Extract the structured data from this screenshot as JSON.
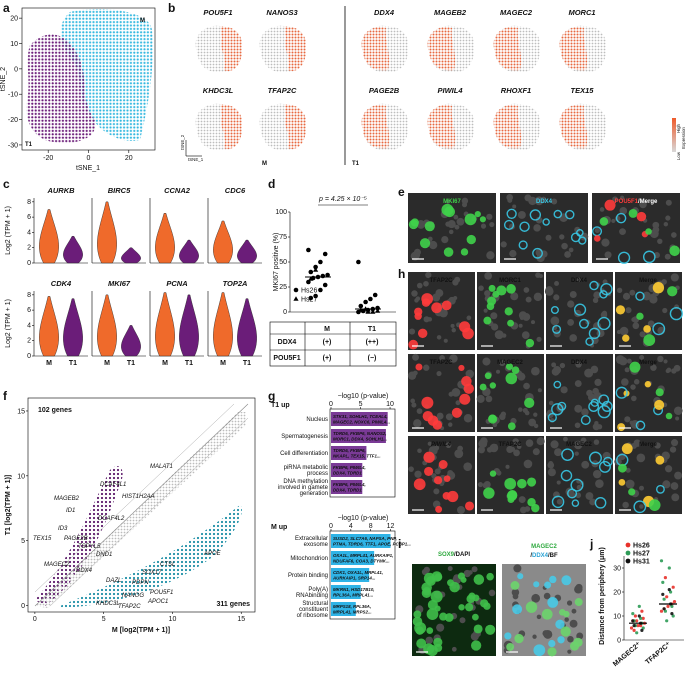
{
  "a": {
    "label": "a",
    "clusters": [
      "M",
      "T1"
    ],
    "xlabel": "tSNE_1",
    "ylabel": "tSNE_2",
    "xlim": [
      -33,
      33
    ],
    "xticks": [
      -20,
      0,
      20
    ],
    "ylim": [
      -32,
      24
    ],
    "yticks": [
      -30,
      -20,
      -10,
      0,
      10,
      20
    ]
  },
  "b": {
    "label": "b",
    "m_genes": [
      "POU5F1",
      "NANOS3",
      "KHDC3L",
      "TFAP2C"
    ],
    "t1_genes": [
      "DDX4",
      "MAGEB2",
      "MAGEC2",
      "MORC1",
      "PAGE2B",
      "PIWIL4",
      "RHOXF1",
      "TEX15"
    ],
    "groups": [
      "M",
      "T1"
    ],
    "axis_y": "tSNE_2",
    "axis_x": "tSNE_1",
    "legend": {
      "high": "High",
      "low": "Low",
      "title": "Expression"
    }
  },
  "c": {
    "label": "c",
    "genes": [
      "AURKB",
      "BIRC5",
      "CCNA2",
      "CDC6",
      "CDK4",
      "MKI67",
      "PCNA",
      "TOP2A"
    ],
    "ylabel": "Log2 (TPM + 1)",
    "ylim": [
      0,
      8.5
    ],
    "yticks": [
      0,
      2,
      4,
      6,
      8
    ],
    "series": [
      {
        "name": "M",
        "color": "#ef6a2b",
        "values": [
          7,
          8,
          6.5,
          5.5,
          7.8,
          8,
          8.3,
          8.3
        ]
      },
      {
        "name": "T1",
        "color": "#6b1d79",
        "values": [
          3.5,
          2,
          3,
          3,
          7.5,
          4,
          8,
          7.5
        ]
      }
    ]
  },
  "d": {
    "label": "d",
    "p_text": "p = 4.25 × 10⁻⁵",
    "ylabel": "MKI67 positive (%)",
    "ylim": [
      0,
      100
    ],
    "yticks": [
      0,
      25,
      50,
      75,
      100
    ],
    "series": [
      {
        "name": "Hs26",
        "marker": "circle",
        "values": [
          [
            62,
            58,
            50,
            45,
            40,
            37,
            36,
            35,
            34,
            30,
            27,
            22,
            16,
            14
          ],
          [
            50,
            17,
            13,
            10,
            6,
            4,
            3,
            2,
            1,
            0
          ]
        ]
      },
      {
        "name": "Hs27",
        "marker": "triangle",
        "values": [
          [
            42,
            33
          ],
          [
            3,
            2,
            1,
            0,
            0
          ]
        ]
      }
    ],
    "medians": [
      35,
      3
    ],
    "table": {
      "header": [
        "M",
        "T1"
      ],
      "rows": [
        [
          "DDX4",
          "(+)",
          "(++)"
        ],
        [
          "POU5F1",
          "(+)",
          "(−)"
        ]
      ]
    }
  },
  "e": {
    "label": "e",
    "panels": [
      [
        {
          "text": "MKI67",
          "color": "#3fd14a"
        }
      ],
      [
        {
          "text": "DDX4",
          "color": "#37c8e6"
        }
      ],
      [
        {
          "text": "POU5F1",
          "color": "#ff3b3b"
        },
        {
          "text": "/Merge",
          "color": "#ffffff"
        }
      ]
    ]
  },
  "f": {
    "label": "f",
    "count_up": "102 genes",
    "count_down": "311 genes",
    "xlabel": "M [log2(TPM + 1)]",
    "ylabel": "T1 [log2(TPM + 1)]",
    "xlim": [
      -0.5,
      16
    ],
    "ylim": [
      -0.5,
      16
    ],
    "xticks": [
      0,
      5,
      10,
      15
    ],
    "yticks": [
      0,
      5,
      10,
      15
    ],
    "genes_up": [
      "MALAT1",
      "DCAF4L1",
      "HIST1H2AA",
      "MAGEB2",
      "ID1",
      "DCAF4L2",
      "ID3",
      "PAGE2B",
      "TSPYL5",
      "TEX15",
      "MAGEC2",
      "DND1",
      "DDX4"
    ],
    "genes_down": [
      "APOE",
      "DAZL",
      "CTSL",
      "SOX17",
      "PDPN",
      "POU5F1",
      "APOC1",
      "NANOG",
      "KHDC3L",
      "TFAP2C"
    ]
  },
  "g": {
    "label": "g",
    "panels": [
      {
        "title": "T1 up",
        "axis_title": "−log10 (p-value)",
        "color": "#7a3a96",
        "xlim": [
          0,
          10.5
        ],
        "xticks": [
          0,
          5,
          10
        ],
        "categories": [
          [
            "Nucleus"
          ],
          [
            "Spermatogenesis"
          ],
          [
            "Cell differentiation"
          ],
          [
            "piRNA metabolic",
            "process"
          ],
          [
            "DNA methylation",
            "involved in gamete",
            "generation"
          ]
        ],
        "values": [
          9.6,
          9.3,
          6,
          5.3,
          5.3
        ],
        "genes": [
          [
            "STK31, SOHLH1, TCEAL4,",
            "MAGEC2, NOXC6, PIWIL4..."
          ],
          [
            "TDRD6, FKBP6, NANOS2,",
            "MORC1, DDX4, SOHLH1..."
          ],
          [
            "TDRD6, FKBP6,",
            "NKAPL, TEX15, TTF1..."
          ],
          [
            "FKBP6, PIWIL4,",
            "DDX4, TDRD1"
          ],
          [
            "FKBP6, PIWIL4,",
            "DDX4, TDRD1"
          ]
        ]
      },
      {
        "title": "M up",
        "axis_title": "−log10 (p-value)",
        "color": "#2fb3e6",
        "xlim": [
          0,
          12.5
        ],
        "xticks": [
          0,
          4,
          8,
          12
        ],
        "categories": [
          [
            "Extracellular",
            "exosome"
          ],
          [
            "Mitochondrion"
          ],
          [
            "Protein binding"
          ],
          [
            "Poly(A)",
            "RNAbinding"
          ],
          [
            "Structural",
            "constituent",
            "of ribosome"
          ]
        ],
        "values": [
          12,
          8.7,
          7.7,
          6,
          5
        ],
        "genes": [
          [
            "SUSD2, SLC7A6, NAPSA, PNP,",
            "PTMA, TDRD6, TTF1, APOE, PCBP1..."
          ],
          [
            "OXA1L, MRPL41, AURKAIP1,",
            "NDUFAF6, COA3, DTYMK..."
          ],
          [
            "CDK1, OXA1L, MRPL41,",
            "AURKAIP1, SRP14..."
          ],
          [
            "MKRN1, HSD17B10,",
            "RPL36A, MRPL41..."
          ],
          [
            "MRPS18, RPL36A,",
            "MRPL41, MRPS2..."
          ]
        ]
      }
    ]
  },
  "h": {
    "label": "h",
    "rows": [
      [
        {
          "text": "TFAP2C",
          "color": "#ff3b3b"
        },
        {
          "text": "MORC1",
          "color": "#3fd14a"
        },
        {
          "text": "DDX4",
          "color": "#37c8e6"
        },
        {
          "text": "Merge",
          "color": "#ffffff"
        }
      ],
      [
        {
          "text": "TFAP2C",
          "color": "#ff3b3b"
        },
        {
          "text": "MAGEC2",
          "color": "#3fd14a"
        },
        {
          "text": "DDX4",
          "color": "#37c8e6"
        },
        {
          "text": "Merge",
          "color": "#ffffff"
        }
      ],
      [
        {
          "text": "PIWIL4",
          "color": "#ff3b3b"
        },
        {
          "text": "TFAP2C",
          "color": "#3fd14a"
        },
        {
          "text": "MAGEC2",
          "color": "#37c8e6"
        },
        {
          "text": "Merge",
          "color": "#ffffff"
        }
      ]
    ]
  },
  "i": {
    "label": "i",
    "panels": [
      [
        [
          {
            "text": "SOX9",
            "color": "#2fa93f"
          },
          {
            "text": "/DAPI",
            "color": "#111111"
          }
        ]
      ],
      [
        [
          {
            "text": "MAGEC2",
            "color": "#2fa93f"
          }
        ],
        [
          {
            "text": "/",
            "color": "#111111"
          },
          {
            "text": "DDX4",
            "color": "#2aa3d5"
          },
          {
            "text": "/BF",
            "color": "#111111"
          }
        ]
      ]
    ]
  },
  "j": {
    "label": "j",
    "ylabel": "Distance from periphery (μm)",
    "ylim": [
      0,
      35
    ],
    "yticks": [
      0,
      10,
      20,
      30
    ],
    "categories": [
      "MAGEC2⁺",
      "TFAP2C⁺"
    ],
    "series": [
      {
        "name": "Hs26",
        "color": "#e8312a",
        "values": [
          [
            5,
            6,
            7,
            8,
            9,
            10,
            12,
            4,
            6,
            8
          ],
          [
            12,
            14,
            16,
            18,
            22,
            26,
            15,
            13
          ]
        ]
      },
      {
        "name": "Hs27",
        "color": "#2e9b57",
        "values": [
          [
            3,
            5,
            6,
            7,
            8,
            9,
            11,
            14
          ],
          [
            8,
            10,
            12,
            14,
            17,
            20,
            24,
            30,
            33
          ]
        ]
      },
      {
        "name": "Hs31",
        "color": "#111111",
        "values": [
          [
            4,
            6,
            7,
            8,
            10
          ],
          [
            11,
            13,
            15,
            19,
            21
          ]
        ]
      }
    ],
    "medians": [
      7,
      15
    ]
  }
}
